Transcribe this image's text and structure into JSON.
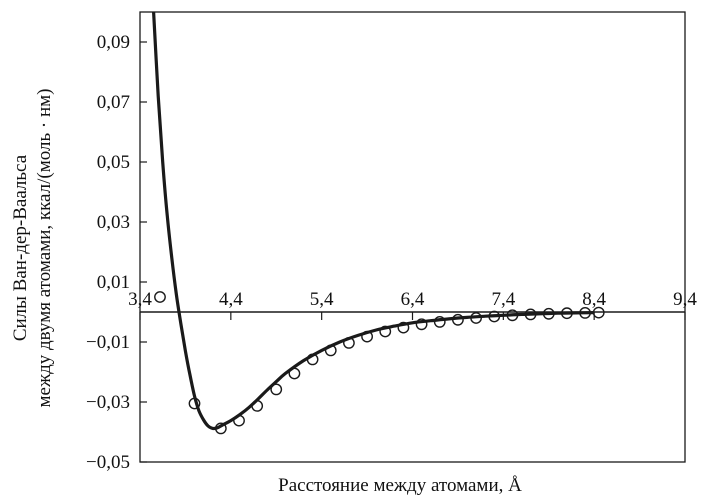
{
  "chart_data": {
    "type": "line",
    "title": "",
    "xlabel": "Расстояние между атомами, Å",
    "ylabel_line1": "Силы Ван-дер-Ваальса",
    "ylabel_line2": "между двумя атомами, ккал/(моль · нм)",
    "xlim": [
      3.4,
      9.4
    ],
    "ylim": [
      -0.05,
      0.1
    ],
    "x_axis_crosses_y_at": 0,
    "x_ticks": [
      3.4,
      4.4,
      5.4,
      6.4,
      7.4,
      8.4,
      9.4
    ],
    "x_tick_labels": [
      "3,4",
      "4,4",
      "5,4",
      "6,4",
      "7,4",
      "8,4",
      "9,4"
    ],
    "y_ticks": [
      0.09,
      0.07,
      0.05,
      0.03,
      0.01,
      -0.01,
      -0.03,
      -0.05
    ],
    "y_tick_labels": [
      "0,09",
      "0,07",
      "0,05",
      "0,03",
      "0,01",
      "−0,01",
      "−0,03",
      "−0,05"
    ],
    "grid": false,
    "series": [
      {
        "kind": "curve",
        "color": "#1a1a1a",
        "x": [
          3.55,
          3.6,
          3.65,
          3.7,
          3.75,
          3.8,
          3.85,
          3.9,
          3.95,
          4.0,
          4.05,
          4.1,
          4.15,
          4.2,
          4.25,
          4.3,
          4.4,
          4.5,
          4.6,
          4.7,
          4.8,
          4.9,
          5.0,
          5.2,
          5.4,
          5.6,
          5.8,
          6.0,
          6.2,
          6.4,
          6.6,
          6.8,
          7.0,
          7.2,
          7.4,
          7.6,
          7.8,
          8.0,
          8.2,
          8.4
        ],
        "y": [
          0.1,
          0.072,
          0.05,
          0.032,
          0.018,
          0.006,
          -0.004,
          -0.013,
          -0.021,
          -0.028,
          -0.033,
          -0.036,
          -0.038,
          -0.0388,
          -0.0386,
          -0.0378,
          -0.0362,
          -0.0342,
          -0.0318,
          -0.029,
          -0.026,
          -0.0232,
          -0.0205,
          -0.0162,
          -0.0128,
          -0.01,
          -0.0078,
          -0.006,
          -0.0047,
          -0.0036,
          -0.0029,
          -0.0023,
          -0.0018,
          -0.0014,
          -0.0011,
          -0.0008,
          -0.0006,
          -0.0004,
          -0.0003,
          -0.0002
        ]
      },
      {
        "kind": "markers",
        "marker": "open-circle",
        "color": "#1a1a1a",
        "x": [
          3.62,
          4.0,
          4.29,
          4.49,
          4.69,
          4.9,
          5.1,
          5.3,
          5.5,
          5.7,
          5.9,
          6.1,
          6.3,
          6.5,
          6.7,
          6.9,
          7.1,
          7.3,
          7.5,
          7.7,
          7.9,
          8.1,
          8.3,
          8.45
        ],
        "y": [
          0.005,
          -0.0305,
          -0.0388,
          -0.0362,
          -0.0313,
          -0.0258,
          -0.0205,
          -0.0158,
          -0.0128,
          -0.0103,
          -0.0082,
          -0.0065,
          -0.0052,
          -0.0041,
          -0.0033,
          -0.0026,
          -0.002,
          -0.0015,
          -0.0011,
          -0.0008,
          -0.0006,
          -0.0004,
          -0.0003,
          -0.0002
        ]
      }
    ]
  }
}
